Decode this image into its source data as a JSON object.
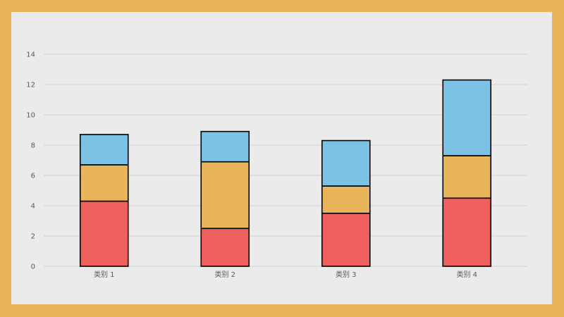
{
  "colors": {
    "frame": "#e9b558",
    "panel": "#ebebeb",
    "grid": "#d0d0d0",
    "series": [
      "#ee605e",
      "#e9b55a",
      "#7cc2e5"
    ]
  },
  "chart_data": {
    "type": "bar",
    "stacked": true,
    "categories": [
      "类别 1",
      "类别 2",
      "类别 3",
      "类别 4"
    ],
    "series": [
      {
        "values": [
          4.3,
          2.5,
          3.5,
          4.5
        ]
      },
      {
        "values": [
          2.4,
          4.4,
          1.8,
          2.8
        ]
      },
      {
        "values": [
          2.0,
          2.0,
          3.0,
          5.0
        ]
      }
    ],
    "ylim": [
      0,
      14
    ],
    "yticks": [
      0,
      2,
      4,
      6,
      8,
      10,
      12,
      14
    ],
    "grid": true,
    "legend": "none"
  }
}
